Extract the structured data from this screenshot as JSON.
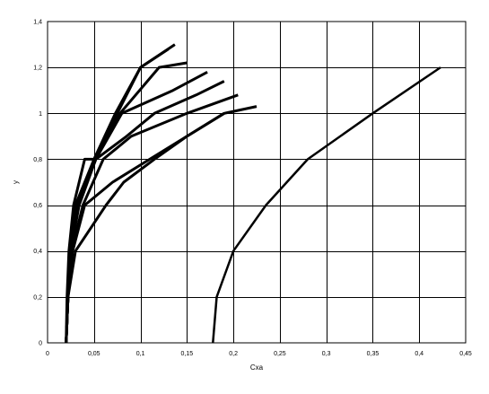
{
  "chart_data": {
    "type": "line",
    "xlabel": "Cxa",
    "ylabel": "y",
    "xlim": [
      0,
      0.45
    ],
    "ylim": [
      0,
      1.4
    ],
    "x_ticks": [
      "0",
      "0,05",
      "0,1",
      "0,15",
      "0,2",
      "0,25",
      "0,3",
      "0,35",
      "0,4",
      "0,45"
    ],
    "y_ticks": [
      "0",
      "0,2",
      "0,4",
      "0,6",
      "0,8",
      "1",
      "1,2",
      "1,4"
    ],
    "x_tick_values": [
      0,
      0.05,
      0.1,
      0.15,
      0.2,
      0.25,
      0.3,
      0.35,
      0.4,
      0.45
    ],
    "y_tick_values": [
      0,
      0.2,
      0.4,
      0.6,
      0.8,
      1.0,
      1.2,
      1.4
    ],
    "grid": true,
    "line_color": "#000000",
    "series": [
      {
        "x": [
          0.02,
          0.021,
          0.023,
          0.028,
          0.04,
          0.05,
          0.073,
          0.1,
          0.137
        ],
        "y": [
          0,
          0.2,
          0.4,
          0.6,
          0.8,
          0.8,
          1.0,
          1.2,
          1.3
        ],
        "width": 3
      },
      {
        "x": [
          0.02,
          0.022,
          0.024,
          0.03,
          0.05,
          0.075,
          0.1,
          0.13
        ],
        "y": [
          0,
          0.2,
          0.4,
          0.6,
          0.8,
          1.0,
          1.2,
          1.28
        ],
        "width": 3
      },
      {
        "x": [
          0.02,
          0.022,
          0.025,
          0.032,
          0.052,
          0.078,
          0.12,
          0.15
        ],
        "y": [
          0,
          0.2,
          0.4,
          0.6,
          0.8,
          1.0,
          1.2,
          1.22
        ],
        "width": 3
      },
      {
        "x": [
          0.02,
          0.022,
          0.025,
          0.033,
          0.052,
          0.08,
          0.135,
          0.172
        ],
        "y": [
          0,
          0.2,
          0.4,
          0.6,
          0.8,
          1.0,
          1.1,
          1.18
        ],
        "width": 3
      },
      {
        "x": [
          0.02,
          0.022,
          0.025,
          0.034,
          0.052,
          0.085,
          0.115,
          0.16,
          0.19
        ],
        "y": [
          0,
          0.2,
          0.4,
          0.6,
          0.8,
          0.9,
          1.0,
          1.08,
          1.14
        ],
        "width": 3
      },
      {
        "x": [
          0.02,
          0.022,
          0.026,
          0.038,
          0.06,
          0.09,
          0.15,
          0.205
        ],
        "y": [
          0,
          0.2,
          0.4,
          0.6,
          0.8,
          0.9,
          1.0,
          1.08
        ],
        "width": 3
      },
      {
        "x": [
          0.02,
          0.022,
          0.027,
          0.04,
          0.07,
          0.11,
          0.19,
          0.225
        ],
        "y": [
          0,
          0.2,
          0.4,
          0.6,
          0.7,
          0.8,
          1.0,
          1.03
        ],
        "width": 3
      },
      {
        "x": [
          0.02,
          0.022,
          0.03,
          0.063,
          0.082,
          0.115,
          0.15,
          0.19
        ],
        "y": [
          0,
          0.2,
          0.4,
          0.6,
          0.7,
          0.8,
          0.9,
          1.0
        ],
        "width": 3
      },
      {
        "x": [
          0.178,
          0.182,
          0.2,
          0.235,
          0.28,
          0.35,
          0.423
        ],
        "y": [
          0,
          0.2,
          0.4,
          0.6,
          0.8,
          1.0,
          1.2
        ],
        "width": 2.5
      }
    ]
  }
}
